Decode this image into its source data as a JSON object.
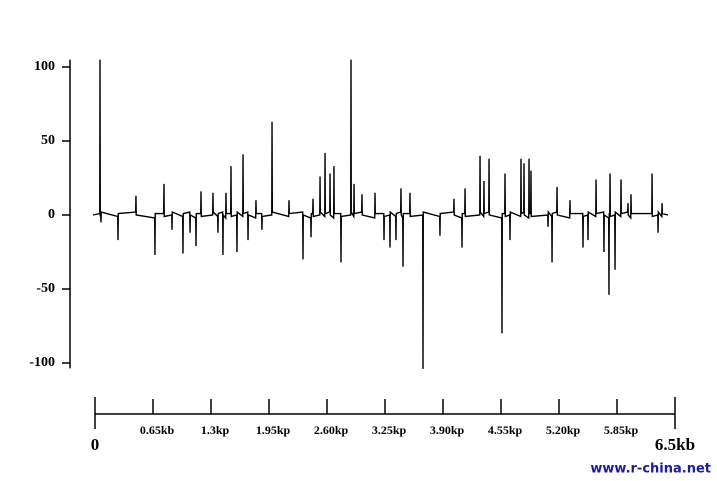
{
  "chart_data": {
    "type": "line",
    "color": "#000000",
    "xlim": [
      0,
      6.5
    ],
    "xticks": [
      0,
      {
        "value": 0.65,
        "label": "0.65kb"
      },
      {
        "value": 1.3,
        "label": "1.3kp"
      },
      {
        "value": 1.95,
        "label": "1.95kp"
      },
      {
        "value": 2.6,
        "label": "2.60kp"
      },
      {
        "value": 3.25,
        "label": "3.25kp"
      },
      {
        "value": 3.9,
        "label": "3.90kp"
      },
      {
        "value": 4.55,
        "label": "4.55kp"
      },
      {
        "value": 5.2,
        "label": "5.20kp"
      },
      {
        "value": 5.85,
        "label": "5.85kp"
      },
      {
        "value": 6.5,
        "label": "6.5kb"
      }
    ],
    "ylim": [
      -105,
      105
    ],
    "yticks": [
      100,
      50,
      0,
      -50,
      -100
    ],
    "x": [
      -0.022,
      0.053,
      0.056,
      0.059,
      0.064,
      0.067,
      0.07,
      0.255,
      0.258,
      0.261,
      0.456,
      0.459,
      0.462,
      0.669,
      0.672,
      0.675,
      0.77,
      0.773,
      0.776,
      0.86,
      0.863,
      0.866,
      0.983,
      0.986,
      0.989,
      1.062,
      1.065,
      1.068,
      1.129,
      1.132,
      1.135,
      1.185,
      1.188,
      1.191,
      1.319,
      1.322,
      1.325,
      1.375,
      1.378,
      1.381,
      1.431,
      1.434,
      1.437,
      1.465,
      1.468,
      1.471,
      1.521,
      1.524,
      1.527,
      1.588,
      1.591,
      1.594,
      1.656,
      1.659,
      1.662,
      1.712,
      1.715,
      1.718,
      1.801,
      1.804,
      1.807,
      1.868,
      1.871,
      1.874,
      1.981,
      1.984,
      1.987,
      2.171,
      2.174,
      2.177,
      2.328,
      2.331,
      2.334,
      2.418,
      2.421,
      2.424,
      2.44,
      2.443,
      2.446,
      2.519,
      2.522,
      2.525,
      2.575,
      2.578,
      2.581,
      2.631,
      2.634,
      2.637,
      2.675,
      2.678,
      2.681,
      2.754,
      2.757,
      2.76,
      2.866,
      2.869,
      2.872,
      2.9,
      2.903,
      2.906,
      2.989,
      2.992,
      2.995,
      3.135,
      3.138,
      3.141,
      3.236,
      3.239,
      3.242,
      3.303,
      3.306,
      3.309,
      3.37,
      3.373,
      3.376,
      3.426,
      3.429,
      3.432,
      3.449,
      3.452,
      3.455,
      3.527,
      3.53,
      3.533,
      3.673,
      3.676,
      3.679,
      3.863,
      3.866,
      3.869,
      4.02,
      4.023,
      4.026,
      4.11,
      4.113,
      4.116,
      4.144,
      4.147,
      4.15,
      4.312,
      4.315,
      4.318,
      4.356,
      4.359,
      4.362,
      4.413,
      4.416,
      4.419,
      4.558,
      4.561,
      4.564,
      4.592,
      4.595,
      4.598,
      4.648,
      4.651,
      4.654,
      4.771,
      4.774,
      4.777,
      4.805,
      4.808,
      4.811,
      4.861,
      4.864,
      4.867,
      4.883,
      4.886,
      4.889,
      5.074,
      5.077,
      5.08,
      5.119,
      5.122,
      5.125,
      5.175,
      5.178,
      5.181,
      5.32,
      5.323,
      5.326,
      5.466,
      5.469,
      5.472,
      5.522,
      5.525,
      5.528,
      5.612,
      5.615,
      5.618,
      5.701,
      5.704,
      5.707,
      5.757,
      5.76,
      5.763,
      5.769,
      5.772,
      5.775,
      5.825,
      5.828,
      5.831,
      5.892,
      5.895,
      5.898,
      5.97,
      5.973,
      5.976,
      6.004,
      6.007,
      6.01,
      6.24,
      6.243,
      6.246,
      6.307,
      6.31,
      6.313,
      6.352,
      6.355,
      6.358,
      6.422
    ],
    "values": [
      0,
      1,
      105,
      -1,
      0,
      -5,
      2,
      -1,
      -17,
      1,
      2,
      13,
      0,
      -2,
      -27,
      1,
      1,
      21,
      -1,
      0,
      -10,
      2,
      -1,
      -26,
      1,
      2,
      -12,
      0,
      -2,
      -21,
      1,
      1,
      16,
      -1,
      0,
      15,
      2,
      -1,
      -12,
      1,
      2,
      -27,
      0,
      -2,
      15,
      1,
      1,
      33,
      -1,
      0,
      -25,
      2,
      -1,
      41,
      1,
      2,
      -17,
      0,
      -2,
      10,
      1,
      1,
      -10,
      -1,
      0,
      63,
      2,
      -1,
      10,
      1,
      2,
      -30,
      0,
      -2,
      -15,
      1,
      1,
      11,
      -1,
      0,
      26,
      2,
      -1,
      42,
      1,
      2,
      28,
      0,
      -2,
      33,
      1,
      1,
      -32,
      -1,
      0,
      105,
      2,
      -1,
      21,
      1,
      2,
      14,
      0,
      -2,
      15,
      1,
      1,
      -17,
      -1,
      0,
      -22,
      2,
      -1,
      -17,
      1,
      2,
      18,
      0,
      -2,
      -35,
      1,
      1,
      15,
      -1,
      0,
      -104,
      2,
      -1,
      -14,
      1,
      2,
      11,
      0,
      -2,
      -22,
      1,
      1,
      18,
      -1,
      0,
      40,
      2,
      -1,
      23,
      1,
      2,
      38,
      0,
      -2,
      -80,
      1,
      1,
      28,
      -1,
      0,
      -17,
      2,
      -1,
      38,
      1,
      2,
      35,
      0,
      -2,
      38,
      1,
      1,
      30,
      -1,
      0,
      -8,
      2,
      -1,
      -32,
      1,
      2,
      19,
      0,
      -2,
      10,
      1,
      1,
      -22,
      -1,
      0,
      -17,
      2,
      -1,
      24,
      1,
      2,
      -25,
      0,
      -2,
      -54,
      1,
      1,
      28,
      -1,
      0,
      -37,
      2,
      -1,
      24,
      1,
      2,
      8,
      0,
      -2,
      14,
      1,
      1,
      28,
      -1,
      0,
      -12,
      2,
      -1,
      8,
      1,
      0
    ]
  },
  "watermark": "www.r-china.net"
}
